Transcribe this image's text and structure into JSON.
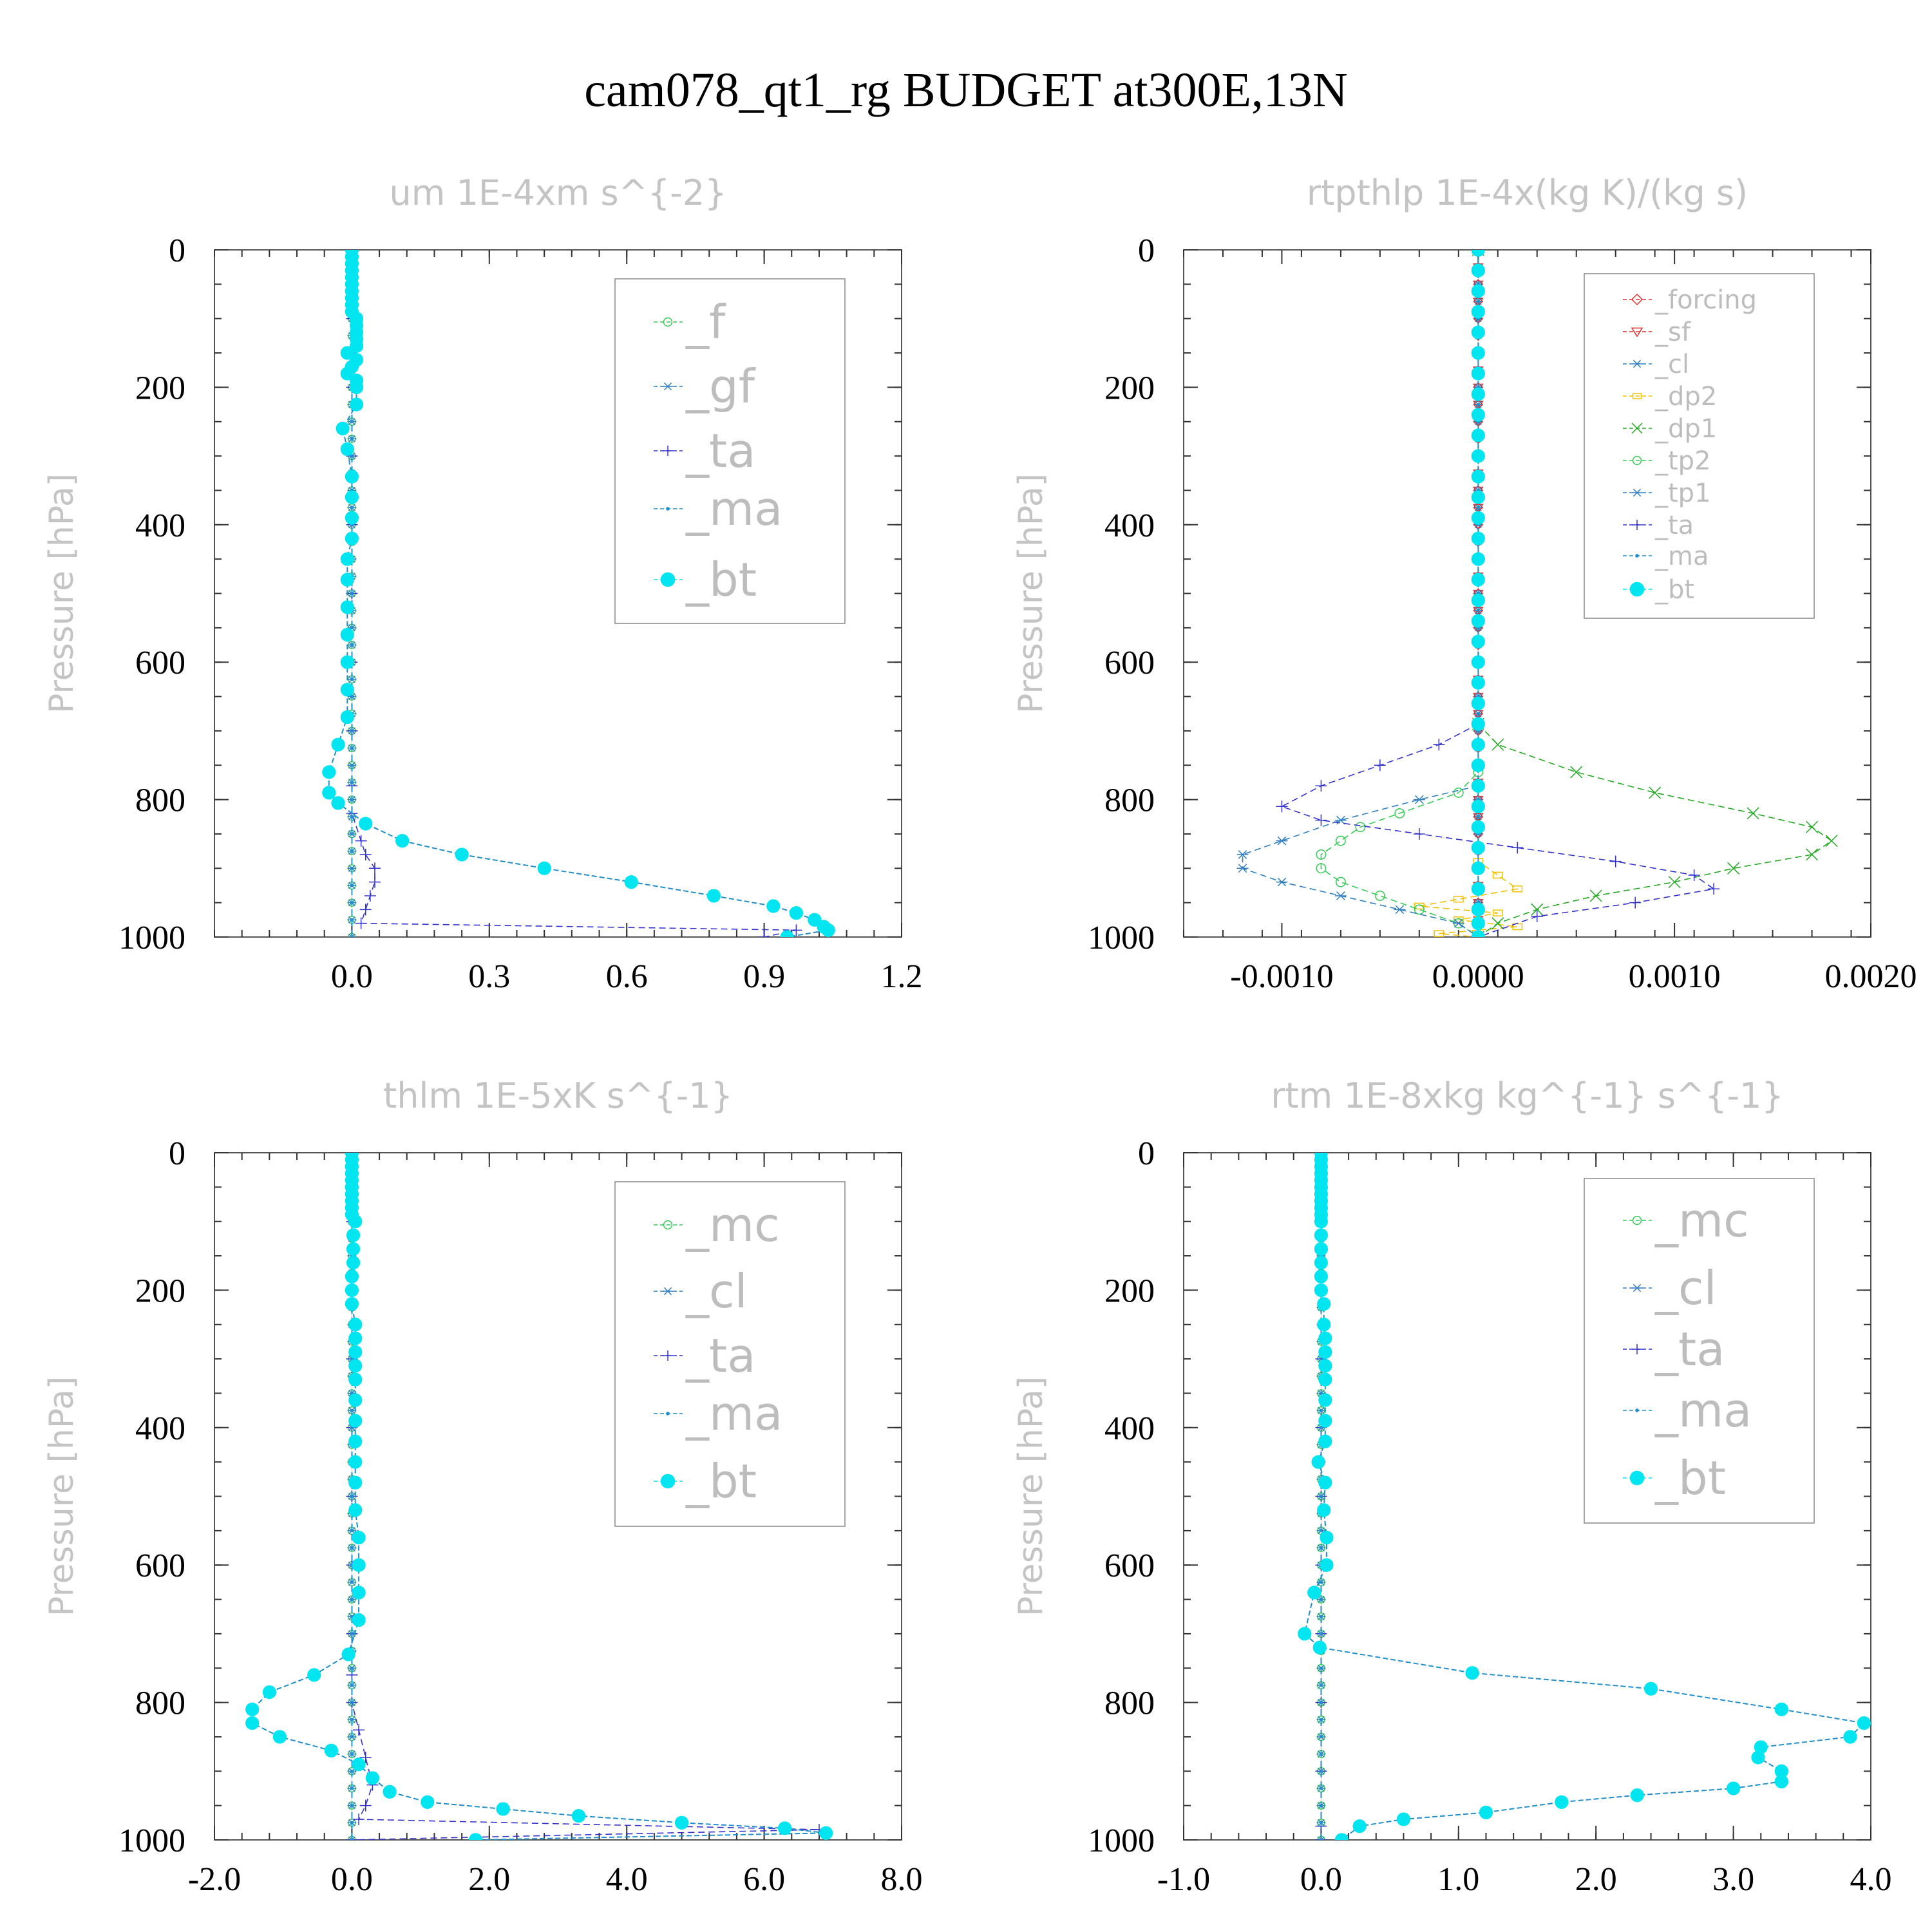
{
  "title": "cam078_qt1_rg  BUDGET at300E,13N",
  "y_axis_label": "Pressure  [hPa]",
  "colors": {
    "_f": "#33cc55",
    "_gf": "#2f7fc0",
    "_ta": "#3333cc",
    "_ma": "#1f8fcc",
    "_bt": "#00e5f0",
    "_mc": "#33cc55",
    "_cl": "#2f7fc0",
    "_forcing": "#e03030",
    "_sf": "#e03030",
    "_dp2": "#f2c000",
    "_dp1": "#22aa22",
    "_tp2": "#33cc55",
    "_tp1": "#2f7fc0"
  },
  "chart_data": [
    {
      "type": "line",
      "title": "um   1E-4xm s^{-2}",
      "ylabel": "Pressure  [hPa]",
      "xlim": [
        -0.3,
        1.2
      ],
      "ylim": [
        1000,
        0
      ],
      "xticks": [
        "0.0",
        "0.3",
        "0.6",
        "0.9",
        "1.2"
      ],
      "yticks": [
        "0",
        "200",
        "400",
        "600",
        "800",
        "1000"
      ],
      "legend": [
        "_f",
        "_gf",
        "_ta",
        "_ma",
        "_bt"
      ],
      "series": [
        {
          "name": "_f",
          "x": [
            0,
            0
          ],
          "y": [
            0,
            1000
          ]
        },
        {
          "name": "_gf",
          "x": [
            0,
            0
          ],
          "y": [
            0,
            1000
          ]
        },
        {
          "name": "_ta",
          "x": [
            0,
            0,
            0,
            0,
            0,
            0,
            0,
            0,
            0,
            0,
            0.02,
            0.03,
            0.05,
            0.05,
            0.04,
            0.03,
            0.02,
            0.97,
            0.9
          ],
          "y": [
            0,
            100,
            200,
            300,
            400,
            500,
            600,
            700,
            780,
            820,
            860,
            880,
            900,
            920,
            940,
            960,
            980,
            990,
            1000
          ]
        },
        {
          "name": "_ma",
          "x": [
            0,
            0
          ],
          "y": [
            0,
            1000
          ]
        },
        {
          "name": "_bt",
          "x": [
            0,
            0,
            0,
            0,
            0,
            0,
            0,
            0,
            0,
            0,
            0.01,
            0.01,
            0.01,
            0.01,
            0.01,
            -0.01,
            0.01,
            0,
            -0.01,
            0.01,
            0.01,
            0.01,
            -0.02,
            -0.01,
            0,
            0,
            0,
            0,
            -0.01,
            -0.01,
            -0.01,
            -0.01,
            -0.01,
            -0.01,
            -0.01,
            -0.03,
            -0.05,
            -0.05,
            -0.03,
            0.03,
            0.11,
            0.24,
            0.42,
            0.61,
            0.79,
            0.92,
            0.97,
            1.01,
            1.03,
            1.04,
            0.95
          ],
          "y": [
            0,
            10,
            20,
            30,
            40,
            50,
            60,
            70,
            80,
            90,
            100,
            110,
            120,
            130,
            140,
            150,
            160,
            170,
            180,
            190,
            200,
            225,
            260,
            290,
            330,
            360,
            390,
            420,
            450,
            480,
            520,
            560,
            600,
            640,
            680,
            720,
            760,
            790,
            805,
            835,
            860,
            880,
            900,
            920,
            940,
            955,
            965,
            975,
            985,
            990,
            1000
          ]
        }
      ]
    },
    {
      "type": "line",
      "title": "rtpthlp   1E-4x(kg K)/(kg s)",
      "ylabel": "Pressure  [hPa]",
      "xlim": [
        -0.0015,
        0.002
      ],
      "ylim": [
        1000,
        0
      ],
      "xticks": [
        "-0.0010",
        "0.0000",
        "0.0010",
        "0.0020"
      ],
      "yticks": [
        "0",
        "200",
        "400",
        "600",
        "800",
        "1000"
      ],
      "legend": [
        "_forcing",
        "_sf",
        "_cl",
        "_dp2",
        "_dp1",
        "_tp2",
        "_tp1",
        "_ta",
        "_ma",
        "_bt"
      ],
      "series": [
        {
          "name": "_forcing",
          "x": [
            0,
            0
          ],
          "y": [
            0,
            1000
          ]
        },
        {
          "name": "_sf",
          "x": [
            0,
            0
          ],
          "y": [
            0,
            1000
          ]
        },
        {
          "name": "_cl",
          "x": [
            0,
            0
          ],
          "y": [
            0,
            1000
          ]
        },
        {
          "name": "_dp2",
          "x": [
            0,
            0,
            0.0001,
            0.0002,
            -0.0001,
            -0.0003,
            0.0001,
            -0.0001,
            0.0002,
            -0.0002,
            0
          ],
          "y": [
            0,
            890,
            910,
            930,
            945,
            955,
            965,
            975,
            985,
            995,
            1000
          ]
        },
        {
          "name": "_dp1",
          "x": [
            0,
            0,
            0.0001,
            0.0005,
            0.0009,
            0.0014,
            0.0017,
            0.0018,
            0.0017,
            0.0013,
            0.001,
            0.0006,
            0.0003,
            0.0001,
            0
          ],
          "y": [
            0,
            690,
            720,
            760,
            790,
            820,
            840,
            860,
            880,
            900,
            920,
            940,
            960,
            980,
            1000
          ]
        },
        {
          "name": "_tp2",
          "x": [
            0,
            0,
            -0.0001,
            -0.0004,
            -0.0006,
            -0.0007,
            -0.0008,
            -0.0008,
            -0.0007,
            -0.0005,
            -0.0003,
            -0.0001,
            0
          ],
          "y": [
            0,
            760,
            790,
            820,
            840,
            860,
            880,
            900,
            920,
            940,
            960,
            980,
            1000
          ]
        },
        {
          "name": "_tp1",
          "x": [
            0,
            0,
            -0.0003,
            -0.0007,
            -0.001,
            -0.0012,
            -0.0012,
            -0.001,
            -0.0007,
            -0.0004,
            -0.0001,
            0
          ],
          "y": [
            0,
            780,
            800,
            830,
            860,
            880,
            900,
            920,
            940,
            960,
            980,
            1000
          ]
        },
        {
          "name": "_ta",
          "x": [
            0,
            0,
            -0.0002,
            -0.0005,
            -0.0008,
            -0.001,
            -0.0008,
            -0.0003,
            0.0002,
            0.0007,
            0.0011,
            0.0012,
            0.0008,
            0.0003,
            0
          ],
          "y": [
            0,
            690,
            720,
            750,
            780,
            810,
            830,
            850,
            870,
            890,
            910,
            930,
            950,
            970,
            1000
          ]
        },
        {
          "name": "_ma",
          "x": [
            0,
            0
          ],
          "y": [
            0,
            1000
          ]
        },
        {
          "name": "_bt",
          "x": [
            0,
            0,
            0,
            0,
            0,
            0,
            0,
            0,
            0,
            0,
            0,
            0,
            0,
            0,
            0,
            0,
            0,
            0,
            0,
            0,
            0,
            0,
            0,
            0,
            0,
            0,
            0,
            0,
            0,
            0,
            0,
            0,
            0,
            0,
            0
          ],
          "y": [
            0,
            30,
            60,
            90,
            120,
            150,
            180,
            210,
            240,
            270,
            300,
            330,
            360,
            390,
            420,
            450,
            480,
            510,
            540,
            570,
            600,
            630,
            660,
            690,
            720,
            750,
            780,
            810,
            840,
            870,
            900,
            930,
            960,
            980,
            1000
          ]
        }
      ]
    },
    {
      "type": "line",
      "title": "thlm   1E-5xK s^{-1}",
      "ylabel": "Pressure  [hPa]",
      "xlim": [
        -2.0,
        8.0
      ],
      "ylim": [
        1000,
        0
      ],
      "xticks": [
        "-2.0",
        "0.0",
        "2.0",
        "4.0",
        "6.0",
        "8.0"
      ],
      "yticks": [
        "0",
        "200",
        "400",
        "600",
        "800",
        "1000"
      ],
      "legend": [
        "_mc",
        "_cl",
        "_ta",
        "_ma",
        "_bt"
      ],
      "series": [
        {
          "name": "_mc",
          "x": [
            0,
            0
          ],
          "y": [
            0,
            1000
          ]
        },
        {
          "name": "_cl",
          "x": [
            0,
            0
          ],
          "y": [
            0,
            1000
          ]
        },
        {
          "name": "_ta",
          "x": [
            0,
            0,
            0,
            0,
            0,
            0,
            0,
            0,
            0,
            0,
            0.1,
            0.2,
            0.3,
            0.2,
            0.1,
            6.8,
            0
          ],
          "y": [
            0,
            100,
            200,
            300,
            400,
            500,
            600,
            700,
            760,
            800,
            840,
            880,
            920,
            950,
            970,
            985,
            1000
          ]
        },
        {
          "name": "_ma",
          "x": [
            0,
            0
          ],
          "y": [
            0,
            1000
          ]
        },
        {
          "name": "_bt",
          "x": [
            0,
            0,
            0,
            0,
            0,
            0,
            0,
            0,
            0,
            0,
            0.05,
            0.02,
            0.02,
            0.02,
            0,
            0,
            0,
            0.05,
            0.05,
            0.05,
            0.05,
            0.05,
            0.05,
            0.05,
            0.05,
            0.05,
            0.05,
            0.05,
            0.1,
            0.1,
            0.1,
            0.1,
            -0.05,
            -0.55,
            -1.2,
            -1.45,
            -1.45,
            -1.05,
            -0.3,
            0.1,
            0.3,
            0.55,
            1.1,
            2.2,
            3.3,
            4.8,
            6.3,
            6.9,
            1.8
          ],
          "y": [
            0,
            10,
            20,
            30,
            40,
            50,
            60,
            70,
            80,
            90,
            100,
            120,
            140,
            160,
            180,
            200,
            220,
            250,
            270,
            290,
            310,
            330,
            360,
            390,
            420,
            450,
            480,
            520,
            560,
            600,
            640,
            680,
            730,
            760,
            785,
            810,
            830,
            850,
            870,
            890,
            910,
            930,
            945,
            955,
            965,
            975,
            983,
            990,
            1000
          ]
        }
      ]
    },
    {
      "type": "line",
      "title": "rtm   1E-8xkg kg^{-1} s^{-1}",
      "ylabel": "Pressure  [hPa]",
      "xlim": [
        -1.0,
        4.0
      ],
      "ylim": [
        1000,
        0
      ],
      "xticks": [
        "-1.0",
        "0.0",
        "1.0",
        "2.0",
        "3.0",
        "4.0"
      ],
      "yticks": [
        "0",
        "200",
        "400",
        "600",
        "800",
        "1000"
      ],
      "legend": [
        "_mc",
        "_cl",
        "_ta",
        "_ma",
        "_bt"
      ],
      "series": [
        {
          "name": "_mc",
          "x": [
            0,
            0
          ],
          "y": [
            0,
            1000
          ]
        },
        {
          "name": "_cl",
          "x": [
            0,
            0
          ],
          "y": [
            0,
            1000
          ]
        },
        {
          "name": "_ta",
          "x": [
            0,
            0,
            0,
            0,
            0,
            0,
            0,
            0,
            0,
            0,
            0,
            0
          ],
          "y": [
            0,
            100,
            200,
            300,
            400,
            500,
            600,
            700,
            800,
            900,
            980,
            1000
          ]
        },
        {
          "name": "_ma",
          "x": [
            0,
            0
          ],
          "y": [
            0,
            1000
          ]
        },
        {
          "name": "_bt",
          "x": [
            0,
            0,
            0,
            0,
            0,
            0,
            0,
            0,
            0,
            0,
            0,
            0,
            0,
            0,
            0,
            0,
            0.02,
            0.02,
            0.03,
            0.03,
            0.03,
            0.03,
            0.03,
            0.03,
            0.03,
            -0.02,
            0.03,
            0.02,
            0.04,
            0.04,
            -0.05,
            -0.12,
            -0.01,
            1.1,
            2.4,
            3.35,
            3.95,
            3.85,
            3.2,
            3.18,
            3.35,
            3.35,
            3.0,
            2.3,
            1.75,
            1.2,
            0.6,
            0.28,
            0.15
          ],
          "y": [
            0,
            10,
            20,
            30,
            40,
            50,
            60,
            70,
            80,
            90,
            100,
            120,
            140,
            160,
            180,
            200,
            220,
            250,
            270,
            290,
            310,
            330,
            360,
            390,
            420,
            450,
            480,
            520,
            560,
            600,
            640,
            700,
            720,
            757,
            780,
            810,
            830,
            850,
            865,
            880,
            900,
            915,
            925,
            935,
            945,
            960,
            970,
            980,
            1000
          ]
        }
      ]
    }
  ]
}
